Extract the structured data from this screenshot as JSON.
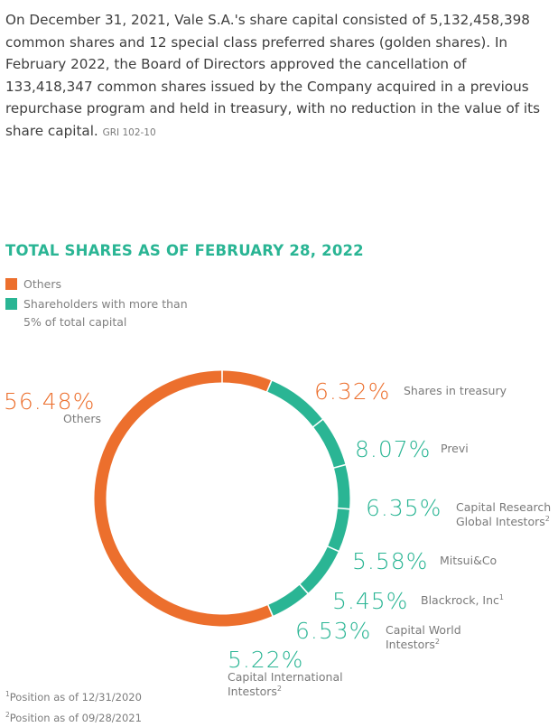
{
  "intro": {
    "text": "On December 31, 2021, Vale S.A.'s share capital consisted of 5,132,458,398 common shares and 12 special class preferred shares (golden shares). In February 2022, the Board of Directors approved the cancellation of 133,418,347 common shares issued by the Company acquired in a previous repurchase program and held in treasury, with no reduction in the value of its share capital.",
    "reference": "GRI 102-10"
  },
  "colors": {
    "others": "#ec6f2d",
    "major": "#2ab594",
    "title": "#2ab594"
  },
  "chart_data": {
    "type": "pie",
    "title": "TOTAL SHARES AS OF FEBRUARY 28, 2022",
    "legend": [
      {
        "label": "Others",
        "color": "#ec6f2d"
      },
      {
        "label": "Shareholders with more than 5% of total capital",
        "color": "#2ab594"
      }
    ],
    "slices": [
      {
        "value": 6.32,
        "pct": "6.32%",
        "label": "Shares in treasury",
        "group": "others"
      },
      {
        "value": 8.07,
        "pct": "8.07%",
        "label": "Previ",
        "group": "major"
      },
      {
        "value": 6.35,
        "pct": "6.35%",
        "label": "Capital Research Global Intestors",
        "note": "2",
        "group": "major"
      },
      {
        "value": 5.58,
        "pct": "5.58%",
        "label": "Mitsui&Co",
        "group": "major"
      },
      {
        "value": 5.45,
        "pct": "5.45%",
        "label": "Blackrock, Inc",
        "note": "1",
        "group": "major"
      },
      {
        "value": 6.53,
        "pct": "6.53%",
        "label": "Capital World Intestors",
        "note": "2",
        "group": "major"
      },
      {
        "value": 5.22,
        "pct": "5.22%",
        "label": "Capital International Intestors",
        "note": "2",
        "group": "major"
      },
      {
        "value": 56.48,
        "pct": "56.48%",
        "label": "Others",
        "group": "others"
      }
    ]
  },
  "notes": [
    {
      "mark": "1",
      "text": "Position as of 12/31/2020"
    },
    {
      "mark": "2",
      "text": "Position as of 09/28/2021"
    }
  ]
}
